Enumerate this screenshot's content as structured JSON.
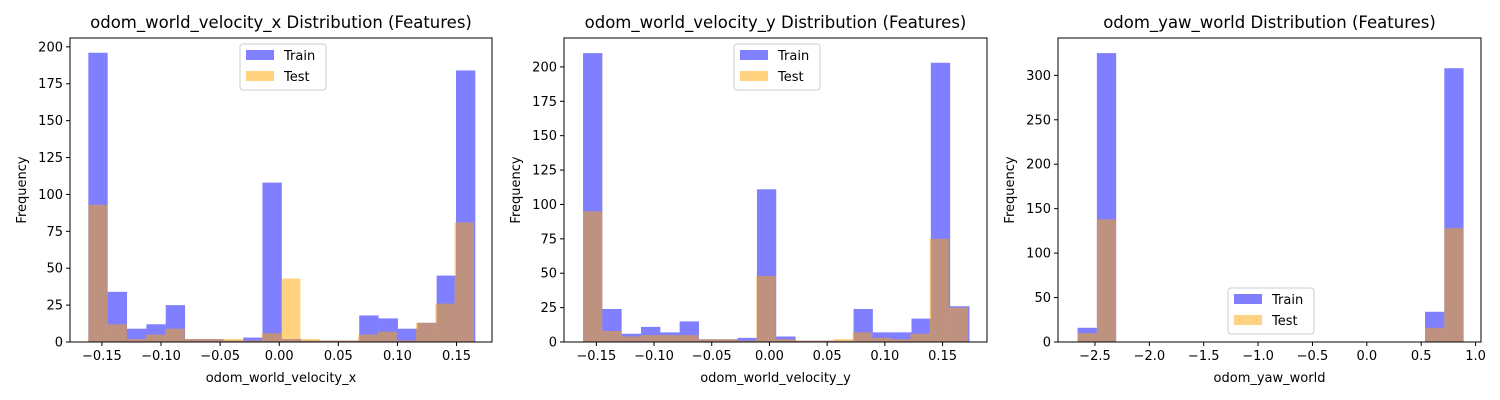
{
  "chart_data": [
    {
      "type": "histogram",
      "title": "odom_world_velocity_x Distribution (Features)",
      "xlabel": "odom_world_velocity_x",
      "ylabel": "Frequency",
      "xlim": [
        -0.177,
        0.18
      ],
      "ylim": [
        0,
        206
      ],
      "xticks": [
        -0.15,
        -0.1,
        -0.05,
        0.0,
        0.05,
        0.1,
        0.15
      ],
      "xtick_labels": [
        "−0.15",
        "−0.10",
        "−0.05",
        "0.00",
        "0.05",
        "0.10",
        "0.15"
      ],
      "yticks": [
        0,
        25,
        50,
        75,
        100,
        125,
        150,
        175,
        200
      ],
      "ytick_labels": [
        "0",
        "25",
        "50",
        "75",
        "100",
        "125",
        "150",
        "175",
        "200"
      ],
      "grid": false,
      "legend_position": "top-center",
      "series": [
        {
          "name": "Train",
          "color": "#0000ff",
          "opacity": 0.5,
          "bin_edges": [
            -0.1615,
            -0.14513,
            -0.12876,
            -0.11239,
            -0.09602,
            -0.07965,
            -0.06328,
            -0.04691,
            -0.03054,
            -0.01417,
            0.0022,
            0.01857,
            0.03494,
            0.05131,
            0.06768,
            0.08405,
            0.10042,
            0.11679,
            0.13316,
            0.14953,
            0.1659
          ],
          "counts": [
            196,
            34,
            9,
            12,
            25,
            2,
            2,
            1,
            3,
            108,
            2,
            1,
            1,
            1,
            18,
            16,
            9,
            13,
            45,
            184
          ]
        },
        {
          "name": "Test",
          "color": "#ffa500",
          "opacity": 0.5,
          "bin_edges": [
            -0.1615,
            -0.14519,
            -0.12888,
            -0.11257,
            -0.09626,
            -0.07995,
            -0.06364,
            -0.04733,
            -0.03102,
            -0.01471,
            0.0016,
            0.01791,
            0.03422,
            0.05053,
            0.06684,
            0.08315,
            0.09946,
            0.11577,
            0.13208,
            0.14839,
            0.1647
          ],
          "counts": [
            93,
            12,
            2,
            5,
            9,
            2,
            2,
            2,
            1,
            6,
            43,
            2,
            1,
            1,
            5,
            7,
            1,
            13,
            26,
            81
          ]
        }
      ]
    },
    {
      "type": "histogram",
      "title": "odom_world_velocity_y Distribution (Features)",
      "xlabel": "odom_world_velocity_y",
      "ylabel": "Frequency",
      "xlim": [
        -0.178,
        0.1885
      ],
      "ylim": [
        0,
        221
      ],
      "xticks": [
        -0.15,
        -0.1,
        -0.05,
        0.0,
        0.05,
        0.1,
        0.15
      ],
      "xtick_labels": [
        "−0.15",
        "−0.10",
        "−0.05",
        "0.00",
        "0.05",
        "0.10",
        "0.15"
      ],
      "yticks": [
        0,
        25,
        50,
        75,
        100,
        125,
        150,
        175,
        200
      ],
      "ytick_labels": [
        "0",
        "25",
        "50",
        "75",
        "100",
        "125",
        "150",
        "175",
        "200"
      ],
      "grid": false,
      "legend_position": "top-center",
      "series": [
        {
          "name": "Train",
          "color": "#0000ff",
          "opacity": 0.5,
          "bin_edges": [
            -0.1615,
            -0.14476,
            -0.12802,
            -0.11128,
            -0.09454,
            -0.0778,
            -0.06106,
            -0.04432,
            -0.02758,
            -0.01084,
            0.0059,
            0.02264,
            0.03938,
            0.05612,
            0.07286,
            0.0896,
            0.10634,
            0.12308,
            0.13982,
            0.15656,
            0.1733
          ],
          "counts": [
            210,
            24,
            6,
            11,
            7,
            15,
            2,
            2,
            3,
            111,
            4,
            1,
            1,
            1,
            24,
            7,
            7,
            17,
            203,
            26
          ]
        },
        {
          "name": "Test",
          "color": "#ffa500",
          "opacity": 0.5,
          "bin_edges": [
            -0.1615,
            -0.14482,
            -0.12814,
            -0.11146,
            -0.09478,
            -0.0781,
            -0.06142,
            -0.04474,
            -0.02806,
            -0.01138,
            0.0053,
            0.02198,
            0.03866,
            0.05534,
            0.07202,
            0.0887,
            0.10538,
            0.12206,
            0.13874,
            0.15542,
            0.1721
          ],
          "counts": [
            95,
            8,
            4,
            5,
            5,
            5,
            2,
            2,
            1,
            48,
            2,
            1,
            1,
            2,
            7,
            3,
            2,
            6,
            75,
            25
          ]
        }
      ]
    },
    {
      "type": "histogram",
      "title": "odom_yaw_world Distribution (Features)",
      "xlabel": "odom_yaw_world",
      "ylabel": "Frequency",
      "xlim": [
        -2.84,
        1.05
      ],
      "ylim": [
        0,
        342
      ],
      "xticks": [
        -2.5,
        -2.0,
        -1.5,
        -1.0,
        -0.5,
        0.0,
        0.5,
        1.0
      ],
      "xtick_labels": [
        "−2.5",
        "−2.0",
        "−1.5",
        "−1.0",
        "−0.5",
        "0.0",
        "0.5",
        "1.0"
      ],
      "yticks": [
        0,
        50,
        100,
        150,
        200,
        250,
        300
      ],
      "ytick_labels": [
        "0",
        "50",
        "100",
        "150",
        "200",
        "250",
        "300"
      ],
      "grid": false,
      "legend_position": "lower-center",
      "series": [
        {
          "name": "Train",
          "color": "#0000ff",
          "opacity": 0.5,
          "bin_edges": [
            -2.66,
            -2.4825,
            -2.305,
            -2.1275,
            -1.95,
            -1.7725,
            -1.595,
            -1.4175,
            -1.24,
            -1.0625,
            -0.885,
            -0.7075,
            -0.53,
            -0.3525,
            -0.175,
            0.0025,
            0.18,
            0.3575,
            0.535,
            0.7125,
            0.89
          ],
          "counts": [
            16,
            325,
            0,
            0,
            0,
            0,
            0,
            0,
            0,
            0,
            0,
            0,
            0,
            0,
            0,
            0,
            0,
            0,
            34,
            308
          ]
        },
        {
          "name": "Test",
          "color": "#ffa500",
          "opacity": 0.5,
          "bin_edges": [
            -2.66,
            -2.4825,
            -2.305,
            -2.1275,
            -1.95,
            -1.7725,
            -1.595,
            -1.4175,
            -1.24,
            -1.0625,
            -0.885,
            -0.7075,
            -0.53,
            -0.3525,
            -0.175,
            0.0025,
            0.18,
            0.3575,
            0.535,
            0.7125,
            0.89
          ],
          "counts": [
            10,
            138,
            0,
            0,
            0,
            0,
            0,
            0,
            0,
            0,
            0,
            0,
            0,
            0,
            0,
            0,
            0,
            0,
            16,
            128
          ]
        }
      ]
    }
  ]
}
